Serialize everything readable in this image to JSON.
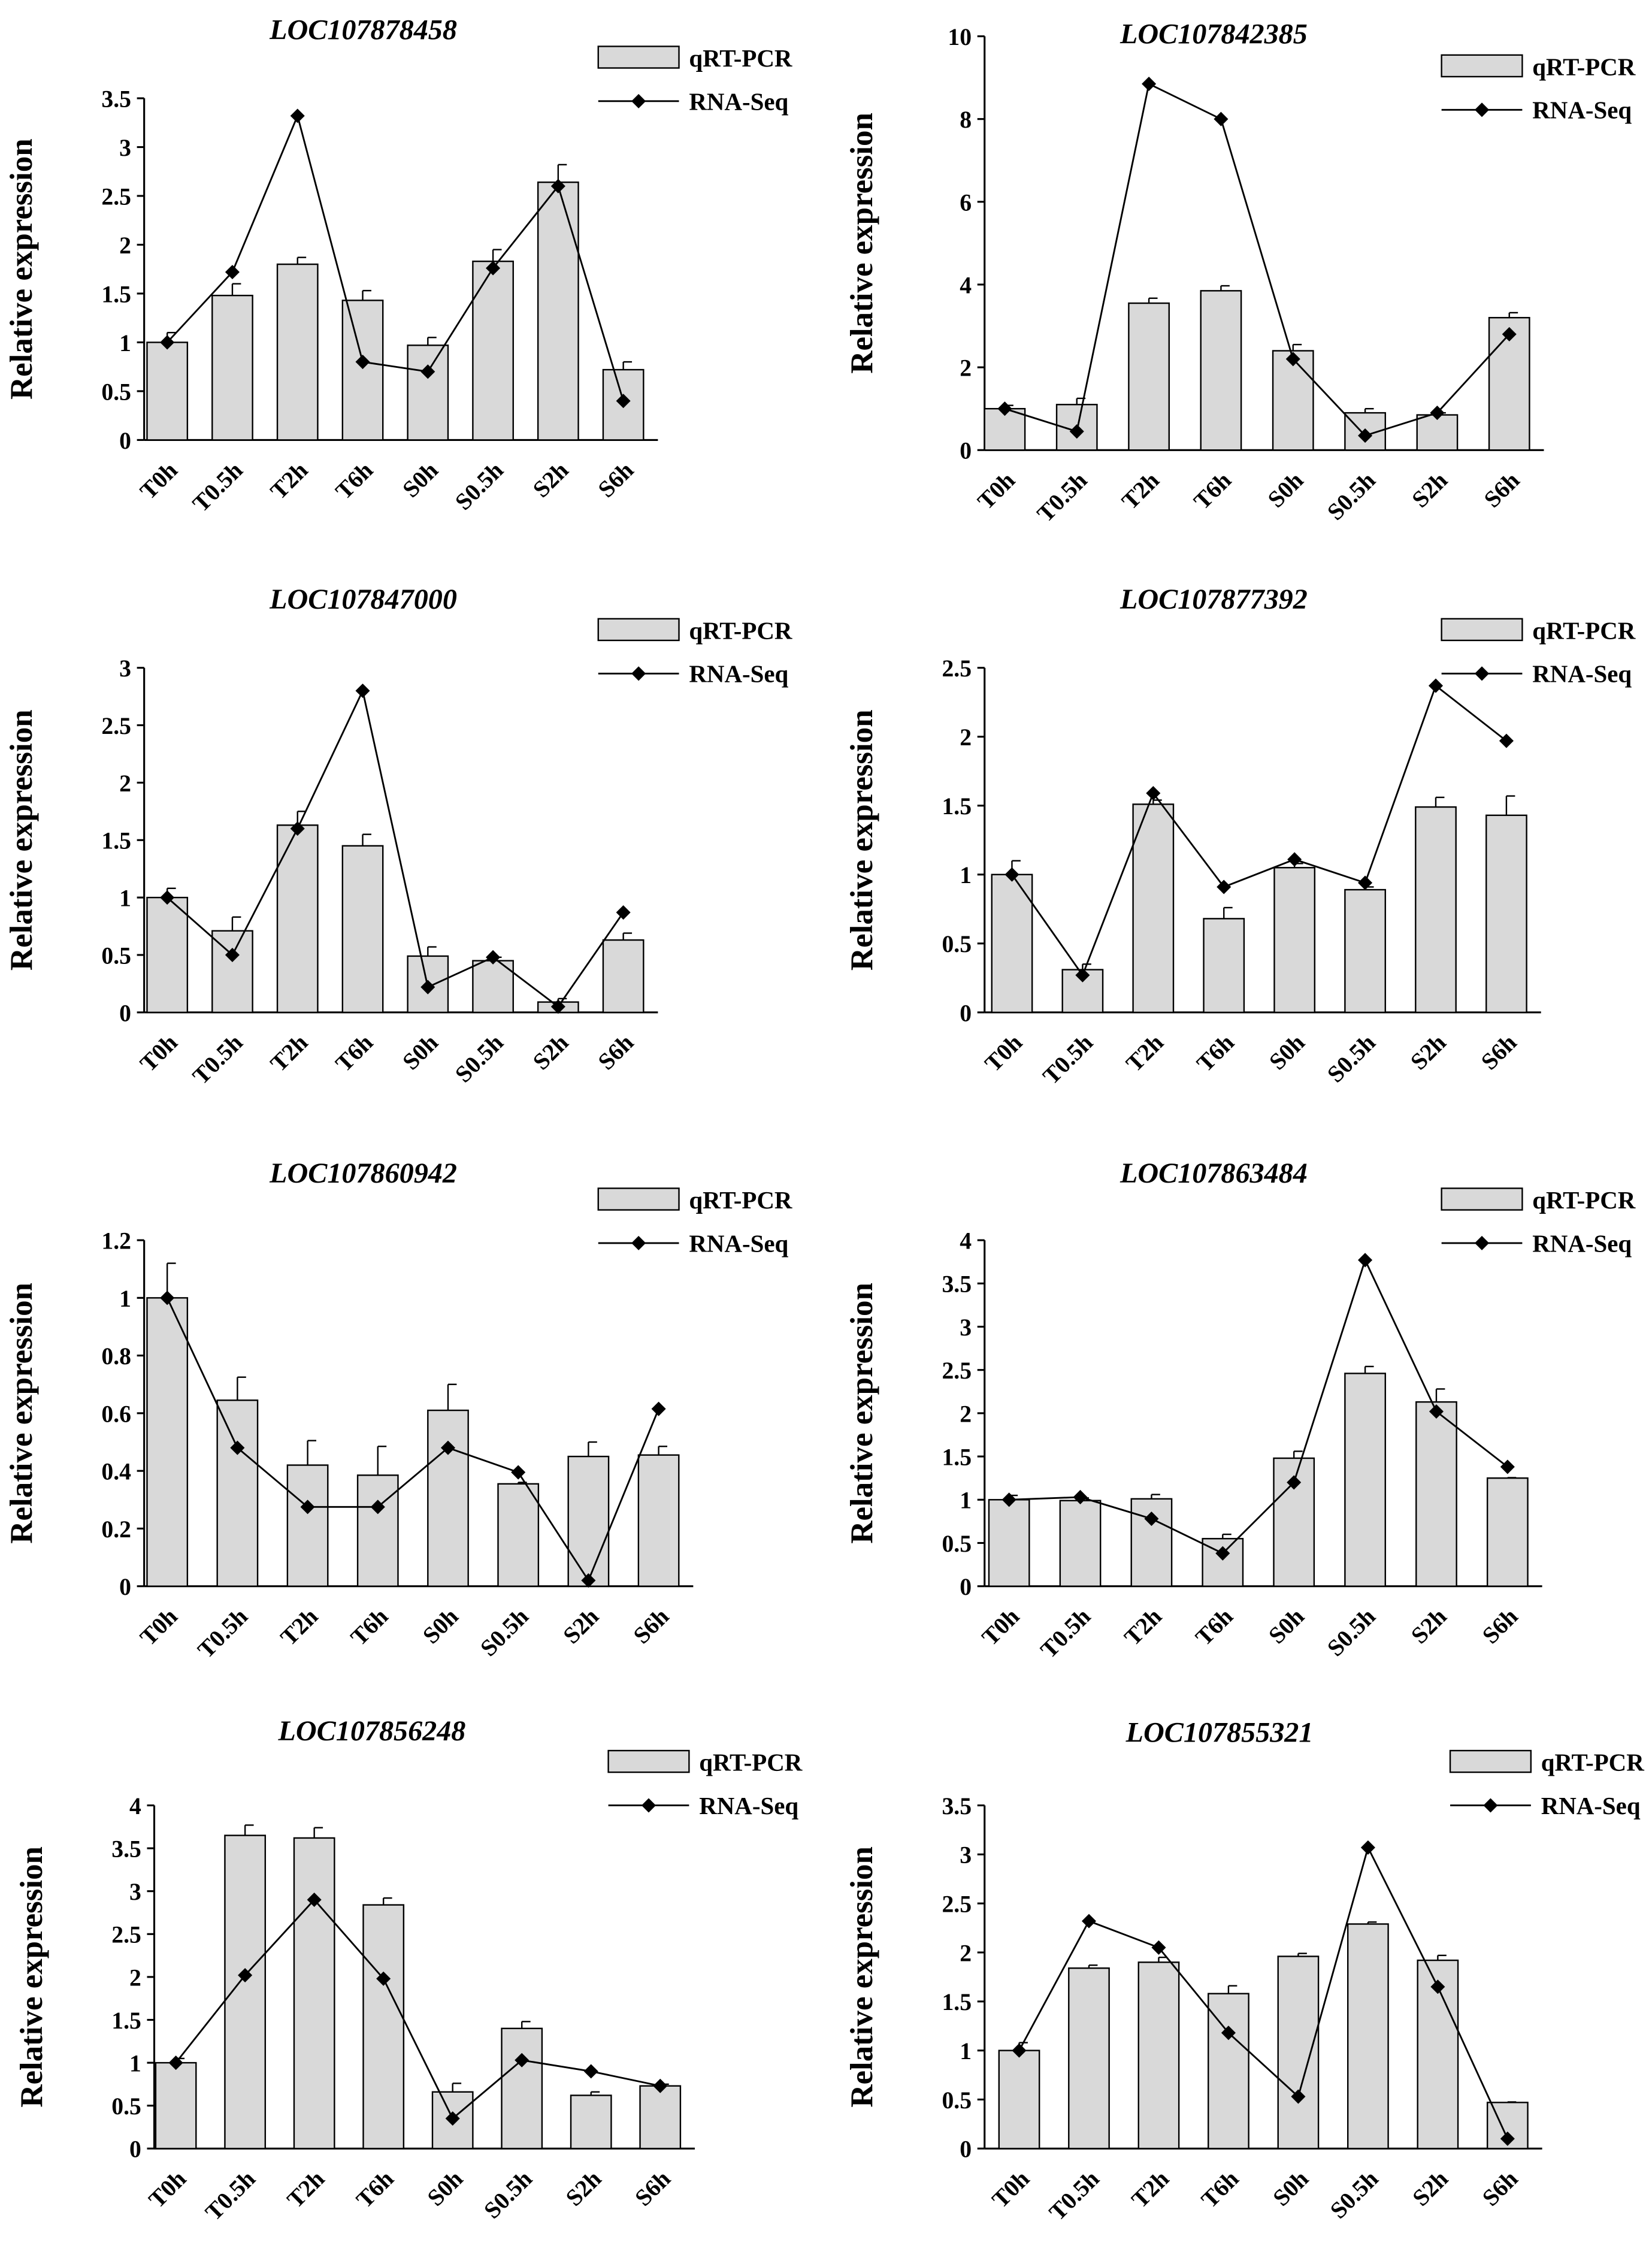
{
  "chart_data": [
    {
      "type": "bar",
      "title": "LOC107878458",
      "ylabel": "Relative expression",
      "xlabel": "",
      "ylim": [
        0,
        3.5
      ],
      "yticks": [
        0,
        0.5,
        1,
        1.5,
        2,
        2.5,
        3,
        3.5
      ],
      "categories": [
        "T0h",
        "T0.5h",
        "T2h",
        "T6h",
        "S0h",
        "S0.5h",
        "S2h",
        "S6h"
      ],
      "legend": [
        "qRT-PCR",
        "RNA-Seq"
      ],
      "legend_position": "top-right",
      "series": [
        {
          "name": "qRT-PCR",
          "kind": "bar",
          "values": [
            1.0,
            1.48,
            1.8,
            1.43,
            0.97,
            1.83,
            2.64,
            0.72
          ],
          "errors": [
            0.1,
            0.12,
            0.07,
            0.1,
            0.08,
            0.12,
            0.18,
            0.08
          ]
        },
        {
          "name": "RNA-Seq",
          "kind": "line",
          "values": [
            1.0,
            1.72,
            3.32,
            0.8,
            0.7,
            1.76,
            2.6,
            0.4
          ]
        }
      ]
    },
    {
      "type": "bar",
      "title": "LOC107842385",
      "ylabel": "Relative expression",
      "xlabel": "",
      "ylim": [
        0,
        10
      ],
      "yticks": [
        0,
        2,
        4,
        6,
        8,
        10
      ],
      "categories": [
        "T0h",
        "T0.5h",
        "T2h",
        "T6h",
        "S0h",
        "S0.5h",
        "S2h",
        "S6h"
      ],
      "legend": [
        "qRT-PCR",
        "RNA-Seq"
      ],
      "legend_position": "top-right",
      "series": [
        {
          "name": "qRT-PCR",
          "kind": "bar",
          "values": [
            1.0,
            1.1,
            3.55,
            3.85,
            2.4,
            0.9,
            0.85,
            3.2
          ],
          "errors": [
            0.08,
            0.15,
            0.12,
            0.12,
            0.15,
            0.1,
            0.05,
            0.12
          ]
        },
        {
          "name": "RNA-Seq",
          "kind": "line",
          "values": [
            1.0,
            0.45,
            8.85,
            8.0,
            2.2,
            0.35,
            0.9,
            2.8
          ]
        }
      ]
    },
    {
      "type": "bar",
      "title": "LOC107847000",
      "ylabel": "Relative expression",
      "xlabel": "",
      "ylim": [
        0,
        3
      ],
      "yticks": [
        0,
        0.5,
        1,
        1.5,
        2,
        2.5,
        3
      ],
      "categories": [
        "T0h",
        "T0.5h",
        "T2h",
        "T6h",
        "S0h",
        "S0.5h",
        "S2h",
        "S6h"
      ],
      "legend": [
        "qRT-PCR",
        "RNA-Seq"
      ],
      "legend_position": "top-right",
      "series": [
        {
          "name": "qRT-PCR",
          "kind": "bar",
          "values": [
            1.0,
            0.71,
            1.63,
            1.45,
            0.49,
            0.45,
            0.09,
            0.63
          ],
          "errors": [
            0.08,
            0.12,
            0.12,
            0.1,
            0.08,
            0.03,
            0.03,
            0.06
          ]
        },
        {
          "name": "RNA-Seq",
          "kind": "line",
          "values": [
            1.0,
            0.5,
            1.6,
            2.8,
            0.22,
            0.48,
            0.05,
            0.87
          ]
        }
      ]
    },
    {
      "type": "bar",
      "title": "LOC107877392",
      "ylabel": "Relative expression",
      "xlabel": "",
      "ylim": [
        0,
        2.5
      ],
      "yticks": [
        0,
        0.5,
        1,
        1.5,
        2,
        2.5
      ],
      "categories": [
        "T0h",
        "T0.5h",
        "T2h",
        "T6h",
        "S0h",
        "S0.5h",
        "S2h",
        "S6h"
      ],
      "legend": [
        "qRT-PCR",
        "RNA-Seq"
      ],
      "legend_position": "top-right",
      "series": [
        {
          "name": "qRT-PCR",
          "kind": "bar",
          "values": [
            1.0,
            0.31,
            1.51,
            0.68,
            1.05,
            0.89,
            1.49,
            1.43
          ],
          "errors": [
            0.1,
            0.04,
            0.03,
            0.08,
            0.03,
            0.02,
            0.07,
            0.14
          ]
        },
        {
          "name": "RNA-Seq",
          "kind": "line",
          "values": [
            1.0,
            0.27,
            1.59,
            0.91,
            1.11,
            0.94,
            2.37,
            1.97
          ]
        }
      ]
    },
    {
      "type": "bar",
      "title": "LOC107860942",
      "ylabel": "Relative expression",
      "xlabel": "",
      "ylim": [
        0,
        1.2
      ],
      "yticks": [
        0,
        0.2,
        0.4,
        0.6,
        0.8,
        1,
        1.2
      ],
      "categories": [
        "T0h",
        "T0.5h",
        "T2h",
        "T6h",
        "S0h",
        "S0.5h",
        "S2h",
        "S6h"
      ],
      "legend": [
        "qRT-PCR",
        "RNA-Seq"
      ],
      "legend_position": "top-right",
      "series": [
        {
          "name": "qRT-PCR",
          "kind": "bar",
          "values": [
            1.0,
            0.645,
            0.42,
            0.385,
            0.61,
            0.355,
            0.45,
            0.455
          ],
          "errors": [
            0.12,
            0.08,
            0.085,
            0.1,
            0.09,
            0.005,
            0.05,
            0.03
          ]
        },
        {
          "name": "RNA-Seq",
          "kind": "line",
          "values": [
            1.0,
            0.48,
            0.275,
            0.275,
            0.48,
            0.395,
            0.02,
            0.615
          ]
        }
      ]
    },
    {
      "type": "bar",
      "title": "LOC107863484",
      "ylabel": "Relative expression",
      "xlabel": "",
      "ylim": [
        0,
        4
      ],
      "yticks": [
        0,
        0.5,
        1,
        1.5,
        2,
        2.5,
        3,
        3.5,
        4
      ],
      "categories": [
        "T0h",
        "T0.5h",
        "T2h",
        "T6h",
        "S0h",
        "S0.5h",
        "S2h",
        "S6h"
      ],
      "legend": [
        "qRT-PCR",
        "RNA-Seq"
      ],
      "legend_position": "top-right",
      "series": [
        {
          "name": "qRT-PCR",
          "kind": "bar",
          "values": [
            1.0,
            0.99,
            1.01,
            0.55,
            1.48,
            2.46,
            2.13,
            1.25
          ],
          "errors": [
            0.05,
            0.03,
            0.05,
            0.05,
            0.08,
            0.08,
            0.15,
            0.005
          ]
        },
        {
          "name": "RNA-Seq",
          "kind": "line",
          "values": [
            1.0,
            1.03,
            0.78,
            0.38,
            1.2,
            3.77,
            2.02,
            1.38
          ]
        }
      ]
    },
    {
      "type": "bar",
      "title": "LOC107856248",
      "ylabel": "Relative expression",
      "xlabel": "",
      "ylim": [
        0,
        4
      ],
      "yticks": [
        0,
        0.5,
        1,
        1.5,
        2,
        2.5,
        3,
        3.5,
        4
      ],
      "categories": [
        "T0h",
        "T0.5h",
        "T2h",
        "T6h",
        "S0h",
        "S0.5h",
        "S2h",
        "S6h"
      ],
      "legend": [
        "qRT-PCR",
        "RNA-Seq"
      ],
      "legend_position": "top-right",
      "series": [
        {
          "name": "qRT-PCR",
          "kind": "bar",
          "values": [
            1.0,
            3.65,
            3.62,
            2.84,
            0.66,
            1.4,
            0.62,
            0.73
          ],
          "errors": [
            0.05,
            0.12,
            0.12,
            0.08,
            0.1,
            0.08,
            0.04,
            0.02
          ]
        },
        {
          "name": "RNA-Seq",
          "kind": "line",
          "values": [
            1.0,
            2.02,
            2.9,
            1.98,
            0.35,
            1.03,
            0.9,
            0.73
          ]
        }
      ]
    },
    {
      "type": "bar",
      "title": "LOC107855321",
      "ylabel": "Relative expression",
      "xlabel": "",
      "ylim": [
        0,
        3.5
      ],
      "yticks": [
        0,
        0.5,
        1,
        1.5,
        2,
        2.5,
        3,
        3.5
      ],
      "categories": [
        "T0h",
        "T0.5h",
        "T2h",
        "T6h",
        "S0h",
        "S0.5h",
        "S2h",
        "S6h"
      ],
      "legend": [
        "qRT-PCR",
        "RNA-Seq"
      ],
      "legend_position": "top-right",
      "series": [
        {
          "name": "qRT-PCR",
          "kind": "bar",
          "values": [
            1.0,
            1.84,
            1.9,
            1.58,
            1.96,
            2.29,
            1.92,
            0.47
          ],
          "errors": [
            0.08,
            0.03,
            0.05,
            0.08,
            0.03,
            0.02,
            0.05,
            0.005
          ]
        },
        {
          "name": "RNA-Seq",
          "kind": "line",
          "values": [
            1.0,
            2.32,
            2.05,
            1.18,
            0.53,
            3.07,
            1.65,
            0.1
          ]
        }
      ]
    }
  ],
  "colors": {
    "bar_fill": "#d9d9d9",
    "stroke": "#000000"
  }
}
